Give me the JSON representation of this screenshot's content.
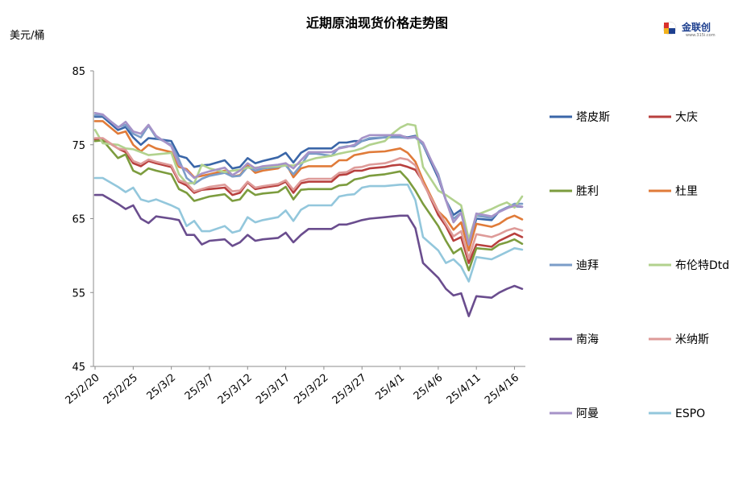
{
  "chart_data": {
    "type": "line",
    "title": "近期原油现货价格走势图",
    "ylabel": "美元/桶",
    "ylim": [
      45,
      85
    ],
    "yticks": [
      45,
      55,
      65,
      75,
      85
    ],
    "xtick_labels": [
      "25/2/20",
      "25/2/25",
      "25/3/2",
      "25/3/7",
      "25/3/12",
      "25/3/17",
      "25/3/22",
      "25/3/27",
      "25/4/1",
      "25/4/6",
      "25/4/11",
      "25/4/16"
    ],
    "xtick_days": [
      0,
      5,
      10,
      15,
      20,
      25,
      30,
      35,
      40,
      45,
      50,
      55
    ],
    "x_days": [
      0,
      1,
      3,
      4,
      5,
      6,
      7,
      8,
      10,
      11,
      12,
      13,
      14,
      15,
      17,
      18,
      19,
      20,
      21,
      22,
      24,
      25,
      26,
      27,
      28,
      29,
      31,
      32,
      33,
      34,
      35,
      36,
      38,
      39,
      40,
      41,
      42,
      43,
      45,
      46,
      47,
      48,
      49,
      50,
      52,
      53,
      54,
      55,
      56
    ],
    "legend_placement": "right",
    "grid": false,
    "series": [
      {
        "name": "塔皮斯",
        "color": "#3a66a8",
        "values": [
          78.8,
          78.8,
          77.0,
          77.4,
          76.0,
          75.0,
          75.9,
          75.8,
          75.5,
          73.5,
          73.2,
          72.0,
          72.2,
          72.3,
          72.9,
          71.8,
          72.0,
          73.2,
          72.5,
          72.8,
          73.3,
          73.9,
          72.6,
          73.9,
          74.5,
          74.5,
          74.5,
          75.3,
          75.3,
          75.5,
          75.5,
          75.8,
          76.0,
          76.1,
          76.2,
          76.0,
          76.2,
          75.0,
          70.5,
          67.5,
          65.5,
          66.2,
          61.5,
          65.0,
          64.8,
          66.0,
          66.5,
          66.7,
          66.6
        ]
      },
      {
        "name": "大庆",
        "color": "#b8403e",
        "values": [
          75.7,
          75.8,
          74.5,
          74.0,
          72.5,
          72.1,
          72.8,
          72.5,
          72.0,
          70.0,
          69.5,
          68.5,
          68.9,
          69.0,
          69.2,
          68.2,
          68.5,
          69.9,
          69.0,
          69.2,
          69.5,
          70.0,
          68.5,
          69.8,
          70.0,
          70.0,
          70.0,
          70.9,
          71.0,
          71.5,
          71.5,
          71.8,
          72.0,
          72.2,
          72.3,
          72.0,
          71.6,
          70.0,
          65.5,
          64.0,
          62.0,
          62.5,
          59.0,
          61.5,
          61.2,
          62.0,
          62.5,
          63.0,
          62.5
        ]
      },
      {
        "name": "胜利",
        "color": "#7c9c3e",
        "values": [
          75.5,
          75.6,
          73.2,
          73.7,
          71.5,
          71.0,
          71.8,
          71.5,
          71.0,
          69.0,
          68.5,
          67.4,
          67.7,
          68.0,
          68.3,
          67.4,
          67.6,
          68.9,
          68.2,
          68.4,
          68.6,
          69.3,
          67.6,
          68.9,
          69.0,
          69.0,
          69.0,
          69.5,
          69.6,
          70.3,
          70.5,
          70.8,
          71.0,
          71.2,
          71.4,
          70.3,
          68.8,
          67.0,
          64.0,
          62.0,
          60.3,
          61.0,
          58.0,
          61.0,
          60.8,
          61.5,
          61.8,
          62.2,
          61.6
        ]
      },
      {
        "name": "杜里",
        "color": "#e07b39",
        "values": [
          78.2,
          78.2,
          76.5,
          76.8,
          75.0,
          74.1,
          75.0,
          74.5,
          74.0,
          72.0,
          71.7,
          70.6,
          70.8,
          71.0,
          71.5,
          70.7,
          70.9,
          72.2,
          71.2,
          71.5,
          71.8,
          72.5,
          70.6,
          71.8,
          72.1,
          72.1,
          72.1,
          72.9,
          72.9,
          73.6,
          73.8,
          74.0,
          74.1,
          74.3,
          74.5,
          73.9,
          72.7,
          70.2,
          66.0,
          65.0,
          63.5,
          64.5,
          60.7,
          64.3,
          63.9,
          64.3,
          65.0,
          65.4,
          64.9
        ]
      },
      {
        "name": "迪拜",
        "color": "#7b9dc8",
        "values": [
          79.0,
          79.0,
          77.4,
          77.7,
          76.5,
          76.0,
          77.6,
          76.0,
          75.0,
          73.0,
          70.5,
          69.7,
          70.4,
          70.8,
          71.2,
          70.7,
          70.8,
          72.0,
          71.5,
          71.8,
          72.0,
          72.2,
          71.0,
          72.2,
          73.8,
          73.8,
          73.5,
          74.6,
          74.8,
          74.8,
          75.5,
          75.9,
          76.0,
          76.0,
          76.0,
          75.9,
          76.0,
          75.0,
          71.0,
          67.5,
          65.0,
          65.8,
          61.5,
          65.4,
          65.1,
          66.0,
          66.5,
          67.0,
          67.0
        ]
      },
      {
        "name": "布伦特Dtd",
        "color": "#b2d28e",
        "values": [
          77.0,
          75.2,
          75.0,
          74.5,
          74.4,
          74.0,
          73.6,
          73.7,
          73.9,
          71.0,
          69.8,
          69.8,
          72.3,
          71.8,
          71.3,
          71.5,
          71.6,
          71.9,
          71.9,
          72.0,
          72.1,
          72.2,
          72.2,
          72.5,
          72.9,
          73.2,
          73.5,
          73.8,
          74.0,
          74.2,
          74.5,
          75.0,
          75.5,
          76.5,
          77.3,
          77.8,
          77.6,
          72.0,
          68.8,
          68.2,
          67.5,
          66.8,
          62.2,
          65.5,
          66.3,
          66.8,
          67.2,
          66.5,
          68.0
        ]
      },
      {
        "name": "南海",
        "color": "#6a4d8e",
        "values": [
          68.2,
          68.2,
          67.0,
          66.3,
          66.8,
          65.0,
          64.4,
          65.3,
          65.0,
          64.8,
          62.8,
          62.8,
          61.5,
          62.0,
          62.2,
          61.3,
          61.8,
          62.8,
          62.0,
          62.2,
          62.4,
          63.1,
          61.8,
          62.8,
          63.6,
          63.6,
          63.6,
          64.2,
          64.2,
          64.5,
          64.8,
          65.0,
          65.2,
          65.3,
          65.4,
          65.4,
          63.7,
          59.0,
          57.0,
          55.5,
          54.6,
          54.9,
          51.8,
          54.5,
          54.3,
          55.0,
          55.5,
          55.9,
          55.5
        ]
      },
      {
        "name": "米纳斯",
        "color": "#de9b99",
        "values": [
          75.9,
          75.9,
          74.5,
          74.3,
          72.8,
          72.4,
          73.0,
          72.7,
          72.2,
          70.2,
          69.8,
          68.7,
          69.0,
          69.3,
          69.6,
          68.7,
          68.8,
          70.0,
          69.2,
          69.4,
          69.7,
          70.2,
          68.9,
          70.1,
          70.4,
          70.4,
          70.4,
          71.2,
          71.3,
          71.9,
          72.0,
          72.3,
          72.5,
          72.8,
          73.2,
          73.0,
          72.2,
          69.8,
          66.0,
          64.3,
          62.6,
          63.3,
          59.6,
          62.9,
          62.5,
          62.9,
          63.4,
          63.7,
          63.4
        ]
      },
      {
        "name": "阿曼",
        "color": "#a693c8",
        "values": [
          79.3,
          79.1,
          77.3,
          78.1,
          76.8,
          76.5,
          77.7,
          76.2,
          74.8,
          72.3,
          71.5,
          70.5,
          71.1,
          71.4,
          71.9,
          70.9,
          71.5,
          72.5,
          71.8,
          72.1,
          72.3,
          72.5,
          71.8,
          72.9,
          74.0,
          74.0,
          74.0,
          74.5,
          74.7,
          75.0,
          75.9,
          76.3,
          76.3,
          76.3,
          76.3,
          75.9,
          76.1,
          75.3,
          70.8,
          67.5,
          64.5,
          65.8,
          61.5,
          65.7,
          65.3,
          65.9,
          66.4,
          66.8,
          66.6
        ]
      },
      {
        "name": "ESPO",
        "color": "#93c7dc",
        "values": [
          70.5,
          70.5,
          69.3,
          68.6,
          69.2,
          67.6,
          67.3,
          67.6,
          66.8,
          66.3,
          64.0,
          64.7,
          63.3,
          63.3,
          64.0,
          63.1,
          63.4,
          65.2,
          64.5,
          64.8,
          65.2,
          66.1,
          64.7,
          66.2,
          66.8,
          66.8,
          66.8,
          68.0,
          68.2,
          68.3,
          69.2,
          69.4,
          69.4,
          69.5,
          69.6,
          69.6,
          67.5,
          62.5,
          60.7,
          59.0,
          59.5,
          58.5,
          56.5,
          59.8,
          59.5,
          60.0,
          60.5,
          61.0,
          60.8
        ]
      }
    ]
  },
  "logo": {
    "name": "金联创",
    "sub": "www.315i.com"
  }
}
